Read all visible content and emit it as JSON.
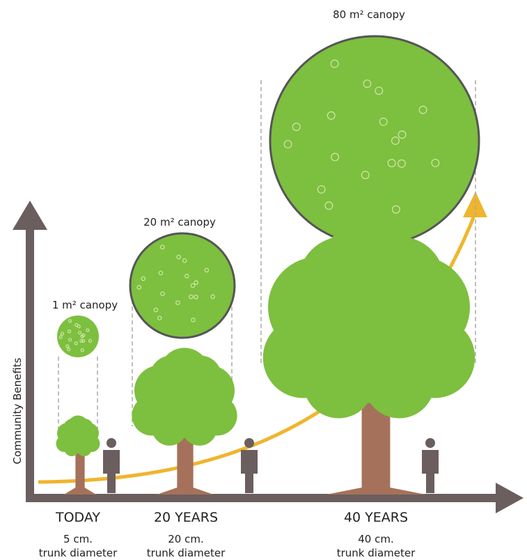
{
  "y_axis_label": "Community Benefits",
  "stages": [
    {
      "label": "TODAY",
      "canopy": "1 m² canopy",
      "trunk_size": "5 cm.",
      "trunk_label": "trunk diameter"
    },
    {
      "label": "20 YEARS",
      "canopy": "20 m² canopy",
      "trunk_size": "20 cm.",
      "trunk_label": "trunk diameter"
    },
    {
      "label": "40 YEARS",
      "canopy": "80 m² canopy",
      "trunk_size": "40 cm.",
      "trunk_label": "trunk diameter"
    }
  ]
}
